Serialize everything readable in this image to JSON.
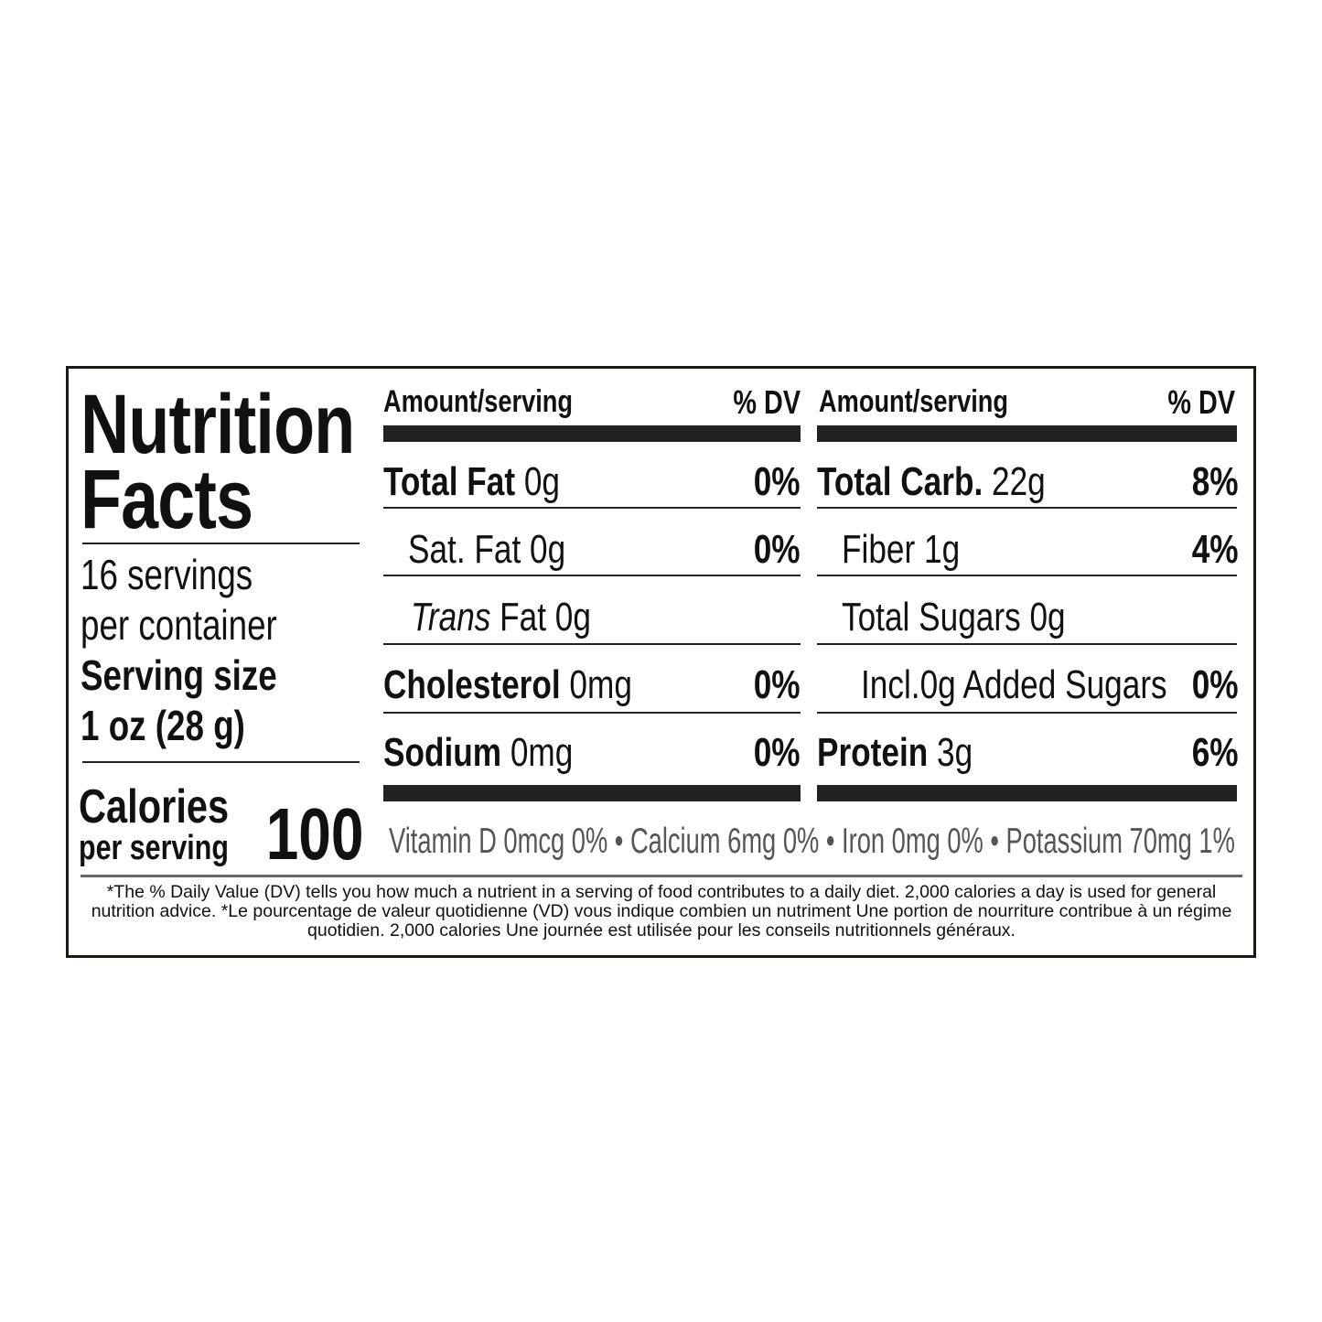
{
  "title_line1": "Nutrition",
  "title_line2": "Facts",
  "servings_line1": "16 servings",
  "servings_line2": "per container",
  "serving_size_label": "Serving size",
  "serving_size_value": "1 oz (28 g)",
  "calories_label": "Calories",
  "calories_sub": "per serving",
  "calories_value": "100",
  "left_table": {
    "header": "Amount/serving",
    "dv_header": "% DV",
    "rows": [
      {
        "label": "Total Fat",
        "value": "0g",
        "dv": "0%"
      },
      {
        "label": "Sat. Fat",
        "value": "0g",
        "dv": "0%"
      },
      {
        "label": "Trans",
        "value": "Fat  0g",
        "dv": ""
      },
      {
        "label": "Cholesterol",
        "value": "0mg",
        "dv": "0%"
      },
      {
        "label": "Sodium",
        "value": "0mg",
        "dv": "0%"
      }
    ]
  },
  "right_table": {
    "header": "Amount/serving",
    "dv_header": "% DV",
    "rows": [
      {
        "label": "Total Carb.",
        "value": "22g",
        "dv": "8%"
      },
      {
        "label": "Fiber",
        "value": "1g",
        "dv": "4%"
      },
      {
        "label": "Total Sugars",
        "value": "0g",
        "dv": ""
      },
      {
        "label": "Incl.",
        "value": "0g Added Sugars",
        "dv": "0%"
      },
      {
        "label": "Protein",
        "value": "3g",
        "dv": "6%"
      }
    ]
  },
  "vitamins": "Vitamin D 0mcg 0% • Calcium 6mg 0% • Iron 0mg 0% • Potassium 70mg  1%",
  "footnote": "*The % Daily Value (DV) tells you how much a nutrient in a serving of food contributes to a daily diet. 2,000 calories a day is used for general nutrition advice. *Le pourcentage de valeur quotidienne (VD) vous indique combien un nutriment Une portion de nourriture contribue à un régime quotidien. 2,000 calories Une journée est utilisée pour les conseils nutritionnels généraux."
}
